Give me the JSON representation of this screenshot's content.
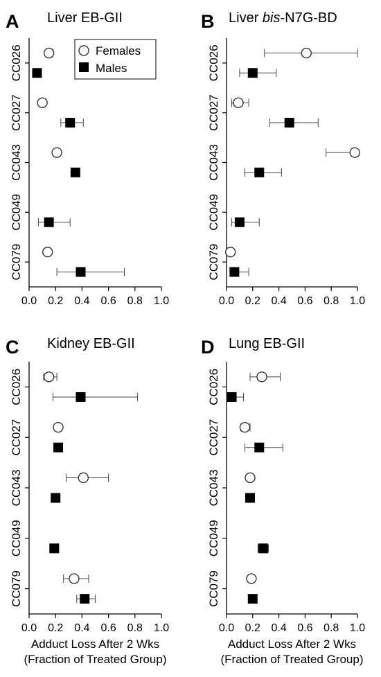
{
  "chart_data": [
    {
      "type": "scatter",
      "panel_letter": "A",
      "title_parts": [
        {
          "text": "Liver EB-GII",
          "italic": false
        }
      ],
      "categories": [
        "CC026",
        "CC027",
        "CC043",
        "CC049",
        "CC079"
      ],
      "xlim": [
        0,
        1.0
      ],
      "xticks": [
        "0.0",
        "0.2",
        "0.4",
        "0.6",
        "0.8",
        "1.0"
      ],
      "xlabel": "",
      "xlabel2": "",
      "legend": {
        "placement": "top-right",
        "entries": [
          "Females",
          "Males"
        ]
      },
      "series": [
        {
          "name": "Females",
          "marker": "open-circle",
          "points": [
            {
              "category": "CC026",
              "value": 0.15,
              "lo": 0.13,
              "hi": 0.18
            },
            {
              "category": "CC027",
              "value": 0.1,
              "lo": 0.08,
              "hi": 0.12
            },
            {
              "category": "CC043",
              "value": 0.21,
              "lo": 0.19,
              "hi": 0.23
            },
            {
              "category": "CC049",
              "value": null
            },
            {
              "category": "CC079",
              "value": 0.14,
              "lo": 0.12,
              "hi": 0.16
            }
          ]
        },
        {
          "name": "Males",
          "marker": "filled-square",
          "points": [
            {
              "category": "CC026",
              "value": 0.06,
              "lo": 0.05,
              "hi": 0.07
            },
            {
              "category": "CC027",
              "value": 0.31,
              "lo": 0.24,
              "hi": 0.41
            },
            {
              "category": "CC043",
              "value": 0.35,
              "lo": 0.33,
              "hi": 0.37
            },
            {
              "category": "CC049",
              "value": 0.15,
              "lo": 0.07,
              "hi": 0.31
            },
            {
              "category": "CC079",
              "value": 0.39,
              "lo": 0.21,
              "hi": 0.72
            }
          ]
        }
      ]
    },
    {
      "type": "scatter",
      "panel_letter": "B",
      "title_parts": [
        {
          "text": "Liver ",
          "italic": false
        },
        {
          "text": "bis",
          "italic": true
        },
        {
          "text": "-N7G-BD",
          "italic": false
        }
      ],
      "categories": [
        "CC026",
        "CC027",
        "CC043",
        "CC049",
        "CC079"
      ],
      "xlim": [
        0,
        1.0
      ],
      "xticks": [
        "0.0",
        "0.2",
        "0.4",
        "0.6",
        "0.8",
        "1.0"
      ],
      "xlabel": "",
      "xlabel2": "",
      "legend": null,
      "series": [
        {
          "name": "Females",
          "marker": "open-circle",
          "points": [
            {
              "category": "CC026",
              "value": 0.61,
              "lo": 0.29,
              "hi": 1.0
            },
            {
              "category": "CC027",
              "value": 0.09,
              "lo": 0.04,
              "hi": 0.17
            },
            {
              "category": "CC043",
              "value": 0.98,
              "lo": 0.76,
              "hi": 0.99
            },
            {
              "category": "CC049",
              "value": null
            },
            {
              "category": "CC079",
              "value": 0.03,
              "lo": 0.02,
              "hi": 0.04
            }
          ]
        },
        {
          "name": "Males",
          "marker": "filled-square",
          "points": [
            {
              "category": "CC026",
              "value": 0.2,
              "lo": 0.1,
              "hi": 0.38
            },
            {
              "category": "CC027",
              "value": 0.48,
              "lo": 0.33,
              "hi": 0.7
            },
            {
              "category": "CC043",
              "value": 0.25,
              "lo": 0.14,
              "hi": 0.42
            },
            {
              "category": "CC049",
              "value": 0.1,
              "lo": 0.04,
              "hi": 0.25
            },
            {
              "category": "CC079",
              "value": 0.06,
              "lo": 0.03,
              "hi": 0.17
            }
          ]
        }
      ]
    },
    {
      "type": "scatter",
      "panel_letter": "C",
      "title_parts": [
        {
          "text": "Kidney EB-GII",
          "italic": false
        }
      ],
      "categories": [
        "CC026",
        "CC027",
        "CC043",
        "CC049",
        "CC079"
      ],
      "xlim": [
        0,
        1.0
      ],
      "xticks": [
        "0.0",
        "0.2",
        "0.4",
        "0.6",
        "0.8",
        "1.0"
      ],
      "xlabel": "Adduct Loss After 2 Wks",
      "xlabel2": "(Fraction of Treated Group)",
      "legend": null,
      "series": [
        {
          "name": "Females",
          "marker": "open-circle",
          "points": [
            {
              "category": "CC026",
              "value": 0.15,
              "lo": 0.11,
              "hi": 0.21
            },
            {
              "category": "CC027",
              "value": 0.22,
              "lo": 0.2,
              "hi": 0.24
            },
            {
              "category": "CC043",
              "value": 0.41,
              "lo": 0.28,
              "hi": 0.6
            },
            {
              "category": "CC049",
              "value": null
            },
            {
              "category": "CC079",
              "value": 0.34,
              "lo": 0.26,
              "hi": 0.45
            }
          ]
        },
        {
          "name": "Males",
          "marker": "filled-square",
          "points": [
            {
              "category": "CC026",
              "value": 0.39,
              "lo": 0.18,
              "hi": 0.82
            },
            {
              "category": "CC027",
              "value": 0.22,
              "lo": 0.2,
              "hi": 0.24
            },
            {
              "category": "CC043",
              "value": 0.2,
              "lo": 0.18,
              "hi": 0.22
            },
            {
              "category": "CC049",
              "value": 0.19,
              "lo": 0.17,
              "hi": 0.21
            },
            {
              "category": "CC079",
              "value": 0.42,
              "lo": 0.36,
              "hi": 0.5
            }
          ]
        }
      ]
    },
    {
      "type": "scatter",
      "panel_letter": "D",
      "title_parts": [
        {
          "text": "Lung EB-GII",
          "italic": false
        }
      ],
      "categories": [
        "CC026",
        "CC027",
        "CC043",
        "CC049",
        "CC079"
      ],
      "xlim": [
        0,
        1.0
      ],
      "xticks": [
        "0.0",
        "0.2",
        "0.4",
        "0.6",
        "0.8",
        "1.0"
      ],
      "xlabel": "Adduct Loss After 2 Wks",
      "xlabel2": "(Fraction of Treated Group)",
      "legend": null,
      "series": [
        {
          "name": "Females",
          "marker": "open-circle",
          "points": [
            {
              "category": "CC026",
              "value": 0.27,
              "lo": 0.18,
              "hi": 0.41
            },
            {
              "category": "CC027",
              "value": 0.14,
              "lo": 0.11,
              "hi": 0.18
            },
            {
              "category": "CC043",
              "value": 0.18,
              "lo": 0.16,
              "hi": 0.2
            },
            {
              "category": "CC049",
              "value": null
            },
            {
              "category": "CC079",
              "value": 0.19,
              "lo": 0.17,
              "hi": 0.21
            }
          ]
        },
        {
          "name": "Males",
          "marker": "filled-square",
          "points": [
            {
              "category": "CC026",
              "value": 0.04,
              "lo": 0.0,
              "hi": 0.13
            },
            {
              "category": "CC027",
              "value": 0.25,
              "lo": 0.14,
              "hi": 0.43
            },
            {
              "category": "CC043",
              "value": 0.18,
              "lo": 0.16,
              "hi": 0.2
            },
            {
              "category": "CC049",
              "value": 0.28,
              "lo": 0.24,
              "hi": 0.32
            },
            {
              "category": "CC079",
              "value": 0.2,
              "lo": 0.18,
              "hi": 0.22
            }
          ]
        }
      ]
    }
  ]
}
